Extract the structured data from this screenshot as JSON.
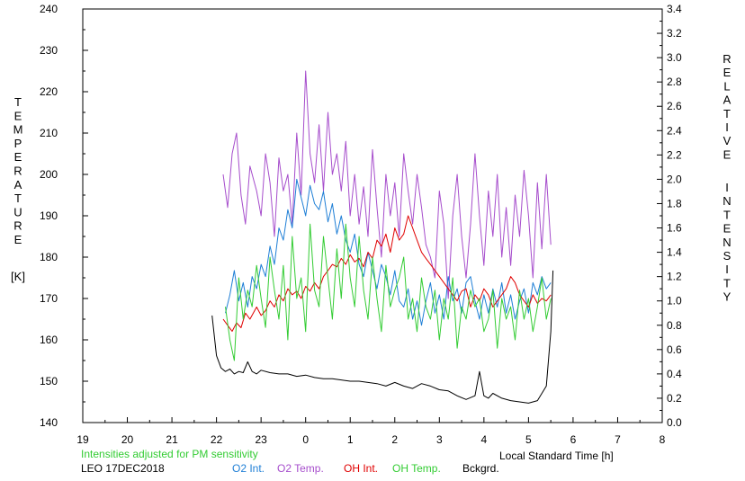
{
  "chart_data": {
    "type": "line",
    "title": "",
    "left_axis": {
      "label_letters": [
        "T",
        "E",
        "M",
        "P",
        "E",
        "R",
        "A",
        "T",
        "U",
        "R",
        "E"
      ],
      "unit": "[K]",
      "ylim": [
        140,
        240
      ],
      "ticks": [
        "140",
        "150",
        "160",
        "170",
        "180",
        "190",
        "200",
        "210",
        "220",
        "230",
        "240"
      ]
    },
    "right_axis": {
      "label_word1": [
        "R",
        "E",
        "L",
        "A",
        "T",
        "I",
        "V",
        "E"
      ],
      "label_word2": [
        "I",
        "N",
        "T",
        "E",
        "N",
        "S",
        "I",
        "T",
        "Y"
      ],
      "ylim": [
        0.0,
        3.4
      ],
      "ticks": [
        "0.0",
        "0.2",
        "0.4",
        "0.6",
        "0.8",
        "1.0",
        "1.2",
        "1.4",
        "1.6",
        "1.8",
        "2.0",
        "2.2",
        "2.4",
        "2.6",
        "2.8",
        "3.0",
        "3.2",
        "3.4"
      ]
    },
    "x_axis": {
      "label": "Local Standard Time [h]",
      "xlim": [
        19,
        32
      ],
      "ticks": [
        "19",
        "20",
        "21",
        "22",
        "23",
        "0",
        "1",
        "2",
        "3",
        "4",
        "5",
        "6",
        "7",
        "8"
      ]
    },
    "note": "Intensities adjusted for PM sensitivity",
    "station": "LEO 17DEC2018",
    "legend": [
      {
        "label": "O2 Int.",
        "color": "#1f7fd6"
      },
      {
        "label": "O2 Temp.",
        "color": "#a64dcc"
      },
      {
        "label": "OH Int.",
        "color": "#e00000"
      },
      {
        "label": "OH Temp.",
        "color": "#33cc33"
      },
      {
        "label": "Bckgrd.",
        "color": "#000000"
      }
    ],
    "series": [
      {
        "name": "O2 Temp.",
        "axis": "left",
        "color": "#a64dcc",
        "x": [
          22.15,
          22.25,
          22.35,
          22.45,
          22.55,
          22.65,
          22.75,
          22.9,
          23.0,
          23.1,
          23.2,
          23.3,
          23.4,
          23.5,
          23.6,
          23.7,
          23.8,
          23.9,
          24.0,
          24.1,
          24.2,
          24.3,
          24.4,
          24.5,
          24.6,
          24.7,
          24.8,
          24.9,
          25.0,
          25.1,
          25.2,
          25.3,
          25.4,
          25.5,
          25.6,
          25.7,
          25.8,
          25.9,
          26.0,
          26.1,
          26.2,
          26.3,
          26.4,
          26.5,
          26.6,
          26.7,
          26.8,
          26.9,
          27.0,
          27.1,
          27.2,
          27.3,
          27.4,
          27.5,
          27.6,
          27.7,
          27.8,
          27.9,
          28.0,
          28.1,
          28.2,
          28.3,
          28.4,
          28.5,
          28.6,
          28.7,
          28.8,
          28.9,
          29.0,
          29.1,
          29.2,
          29.3,
          29.4,
          29.5
        ],
        "y": [
          200,
          192,
          205,
          210,
          195,
          188,
          202,
          196,
          190,
          205,
          198,
          185,
          204,
          196,
          200,
          188,
          210,
          195,
          225,
          205,
          198,
          212,
          196,
          215,
          200,
          205,
          196,
          208,
          190,
          200,
          188,
          197,
          185,
          206,
          192,
          180,
          200,
          190,
          198,
          185,
          205,
          196,
          188,
          200,
          192,
          183,
          180,
          175,
          196,
          188,
          170,
          190,
          200,
          185,
          175,
          188,
          205,
          190,
          178,
          196,
          185,
          200,
          180,
          192,
          178,
          195,
          185,
          201,
          190,
          175,
          198,
          182,
          200,
          183
        ]
      },
      {
        "name": "O2 Int.",
        "axis": "right",
        "color": "#1f7fd6",
        "x": [
          22.2,
          22.3,
          22.4,
          22.5,
          22.6,
          22.7,
          22.8,
          22.9,
          23.0,
          23.1,
          23.2,
          23.3,
          23.4,
          23.5,
          23.6,
          23.7,
          23.8,
          23.9,
          24.0,
          24.1,
          24.2,
          24.3,
          24.4,
          24.5,
          24.6,
          24.7,
          24.8,
          24.9,
          25.0,
          25.1,
          25.2,
          25.3,
          25.4,
          25.5,
          25.6,
          25.7,
          25.8,
          25.9,
          26.0,
          26.1,
          26.2,
          26.3,
          26.4,
          26.5,
          26.6,
          26.7,
          26.8,
          26.9,
          27.0,
          27.1,
          27.2,
          27.3,
          27.4,
          27.5,
          27.6,
          27.7,
          27.8,
          27.9,
          28.0,
          28.1,
          28.2,
          28.3,
          28.4,
          28.5,
          28.6,
          28.7,
          28.8,
          28.9,
          29.0,
          29.1,
          29.2,
          29.3,
          29.4,
          29.5
        ],
        "y": [
          0.9,
          1.05,
          1.25,
          1.0,
          1.15,
          0.95,
          1.2,
          1.1,
          1.3,
          1.2,
          1.45,
          1.3,
          1.6,
          1.5,
          1.75,
          1.6,
          2.0,
          1.85,
          1.7,
          1.95,
          1.8,
          1.75,
          1.9,
          1.65,
          1.8,
          1.55,
          1.7,
          1.5,
          1.4,
          1.55,
          1.3,
          1.2,
          1.4,
          1.25,
          1.1,
          1.3,
          1.2,
          1.05,
          1.25,
          1.0,
          0.95,
          1.1,
          0.85,
          1.0,
          0.8,
          1.0,
          1.15,
          0.9,
          1.05,
          0.85,
          1.2,
          1.0,
          1.1,
          0.9,
          1.15,
          1.2,
          1.0,
          0.85,
          1.05,
          0.9,
          1.1,
          0.95,
          1.15,
          0.9,
          1.05,
          0.85,
          1.0,
          1.1,
          0.9,
          1.15,
          1.05,
          1.2,
          1.1,
          1.15
        ]
      },
      {
        "name": "OH Int.",
        "axis": "right",
        "color": "#e00000",
        "x": [
          22.15,
          22.25,
          22.35,
          22.45,
          22.55,
          22.65,
          22.75,
          22.9,
          23.0,
          23.1,
          23.2,
          23.3,
          23.4,
          23.5,
          23.6,
          23.7,
          23.8,
          23.9,
          24.0,
          24.1,
          24.2,
          24.3,
          24.4,
          24.5,
          24.6,
          24.7,
          24.8,
          24.9,
          25.0,
          25.1,
          25.2,
          25.3,
          25.4,
          25.5,
          25.6,
          25.7,
          25.8,
          25.9,
          26.0,
          26.1,
          26.2,
          26.3,
          26.4,
          26.5,
          26.6,
          26.7,
          26.8,
          26.9,
          27.0,
          27.1,
          27.2,
          27.3,
          27.4,
          27.5,
          27.6,
          27.7,
          27.8,
          27.9,
          28.0,
          28.1,
          28.2,
          28.3,
          28.4,
          28.5,
          28.6,
          28.7,
          28.8,
          28.9,
          29.0,
          29.1,
          29.2,
          29.3,
          29.4,
          29.5
        ],
        "y": [
          0.85,
          0.8,
          0.75,
          0.82,
          0.78,
          0.9,
          0.85,
          0.95,
          0.88,
          0.92,
          1.0,
          0.95,
          1.05,
          1.0,
          1.1,
          1.05,
          1.08,
          1.02,
          1.12,
          1.08,
          1.15,
          1.1,
          1.2,
          1.25,
          1.3,
          1.28,
          1.35,
          1.3,
          1.38,
          1.32,
          1.35,
          1.28,
          1.4,
          1.35,
          1.5,
          1.45,
          1.55,
          1.4,
          1.6,
          1.5,
          1.55,
          1.7,
          1.6,
          1.5,
          1.4,
          1.35,
          1.3,
          1.25,
          1.2,
          1.15,
          1.1,
          1.05,
          1.0,
          1.08,
          1.1,
          0.95,
          1.05,
          1.0,
          1.1,
          1.05,
          0.95,
          1.0,
          1.05,
          1.1,
          1.2,
          1.15,
          1.05,
          1.0,
          0.95,
          1.05,
          0.98,
          1.02,
          1.0,
          1.05
        ]
      },
      {
        "name": "OH Temp.",
        "axis": "left",
        "color": "#33cc33",
        "x": [
          22.2,
          22.3,
          22.4,
          22.5,
          22.6,
          22.7,
          22.8,
          22.9,
          23.0,
          23.1,
          23.2,
          23.3,
          23.4,
          23.5,
          23.6,
          23.7,
          23.8,
          23.9,
          24.0,
          24.1,
          24.2,
          24.3,
          24.4,
          24.5,
          24.6,
          24.7,
          24.8,
          24.9,
          25.0,
          25.1,
          25.2,
          25.3,
          25.4,
          25.5,
          25.6,
          25.7,
          25.8,
          25.9,
          26.0,
          26.1,
          26.2,
          26.3,
          26.4,
          26.5,
          26.6,
          26.7,
          26.8,
          26.9,
          27.0,
          27.1,
          27.2,
          27.3,
          27.4,
          27.5,
          27.6,
          27.7,
          27.8,
          27.9,
          28.0,
          28.1,
          28.2,
          28.3,
          28.4,
          28.5,
          28.6,
          28.7,
          28.8,
          28.9,
          29.0,
          29.1,
          29.2,
          29.3,
          29.4,
          29.5
        ],
        "y": [
          168,
          160,
          155,
          175,
          165,
          172,
          168,
          178,
          170,
          163,
          180,
          172,
          165,
          178,
          160,
          185,
          170,
          175,
          162,
          188,
          172,
          168,
          185,
          175,
          165,
          182,
          170,
          188,
          175,
          168,
          185,
          172,
          165,
          180,
          170,
          162,
          178,
          168,
          172,
          175,
          180,
          165,
          170,
          162,
          175,
          168,
          165,
          172,
          160,
          170,
          165,
          175,
          158,
          168,
          165,
          172,
          168,
          170,
          162,
          165,
          172,
          158,
          170,
          165,
          168,
          160,
          172,
          165,
          170,
          162,
          168,
          175,
          165,
          170
        ]
      },
      {
        "name": "Bckgrd.",
        "axis": "right",
        "color": "#000000",
        "x": [
          21.9,
          22.0,
          22.1,
          22.2,
          22.3,
          22.4,
          22.5,
          22.6,
          22.7,
          22.8,
          22.9,
          23.0,
          23.2,
          23.4,
          23.6,
          23.8,
          24.0,
          24.2,
          24.4,
          24.6,
          24.8,
          25.0,
          25.2,
          25.4,
          25.6,
          25.8,
          26.0,
          26.2,
          26.4,
          26.6,
          26.8,
          27.0,
          27.2,
          27.4,
          27.6,
          27.8,
          27.9,
          28.0,
          28.1,
          28.2,
          28.4,
          28.6,
          28.8,
          29.0,
          29.2,
          29.4,
          29.5,
          29.55
        ],
        "y": [
          0.88,
          0.55,
          0.45,
          0.42,
          0.44,
          0.4,
          0.42,
          0.41,
          0.5,
          0.42,
          0.4,
          0.43,
          0.41,
          0.4,
          0.4,
          0.38,
          0.39,
          0.37,
          0.36,
          0.36,
          0.35,
          0.34,
          0.34,
          0.33,
          0.32,
          0.3,
          0.33,
          0.3,
          0.28,
          0.32,
          0.3,
          0.27,
          0.26,
          0.22,
          0.19,
          0.22,
          0.42,
          0.22,
          0.2,
          0.24,
          0.2,
          0.18,
          0.17,
          0.16,
          0.18,
          0.3,
          0.75,
          1.25
        ]
      }
    ]
  }
}
